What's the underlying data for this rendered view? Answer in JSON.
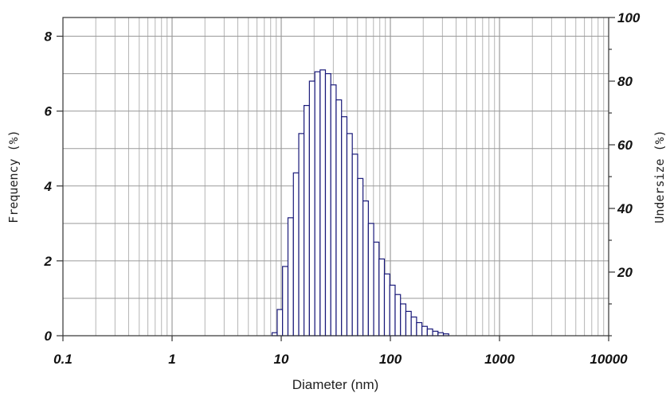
{
  "chart_data": {
    "type": "bar",
    "xlabel": "Diameter (nm)",
    "ylabel": "Frequency (%)",
    "ylabel_right": "Undersize (%)",
    "x_scale": "log",
    "xlim": [
      0.1,
      10000
    ],
    "ylim": [
      0,
      8.5
    ],
    "ylim_right": [
      0,
      100
    ],
    "x_ticks": [
      "0.1",
      "1",
      "10",
      "100",
      "1000",
      "10000"
    ],
    "y_ticks": [
      "0",
      "2",
      "4",
      "6",
      "8"
    ],
    "y_ticks_right": [
      "20",
      "40",
      "60",
      "80",
      "100"
    ],
    "grid": true,
    "bar_color": "#1a1a7a",
    "x": [
      8.7,
      9.7,
      10.9,
      12.2,
      13.7,
      15.3,
      17.1,
      19.2,
      21.5,
      24.0,
      26.9,
      30.1,
      33.7,
      37.8,
      42.3,
      47.4,
      53.0,
      59.4,
      66.5,
      74.4,
      83.3,
      93.3,
      104.5,
      117.0,
      131.0,
      146.7,
      164.3,
      183.9,
      205.9,
      230.6,
      258.2,
      289.1,
      323.7
    ],
    "values": [
      0.08,
      0.7,
      1.85,
      3.15,
      4.35,
      5.4,
      6.15,
      6.8,
      7.05,
      7.1,
      7.0,
      6.7,
      6.3,
      5.85,
      5.4,
      4.85,
      4.2,
      3.6,
      3.0,
      2.5,
      2.05,
      1.65,
      1.35,
      1.1,
      0.85,
      0.65,
      0.5,
      0.35,
      0.25,
      0.18,
      0.12,
      0.08,
      0.05
    ]
  }
}
